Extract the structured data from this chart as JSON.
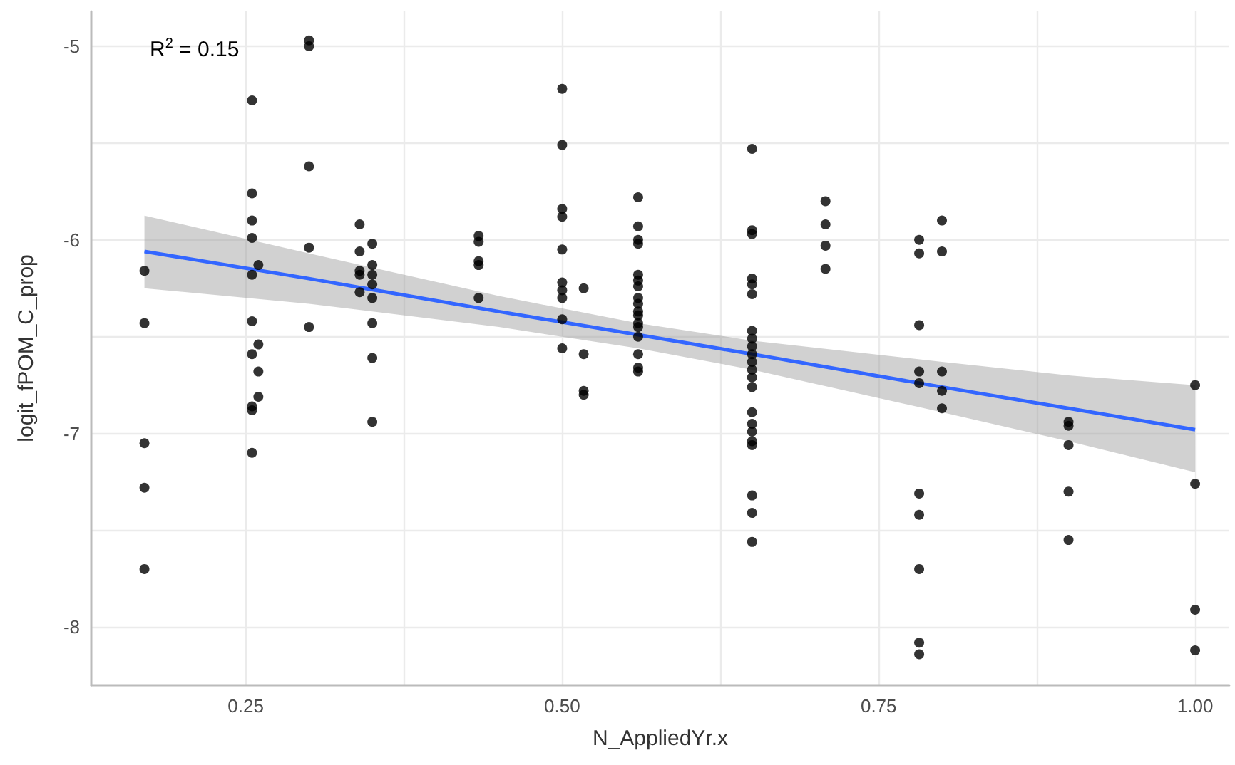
{
  "chart_data": {
    "type": "scatter",
    "xlabel": "N_AppliedYr.x",
    "ylabel": "logit_fPOM_C_prop",
    "annotations": [
      "R$^{2}$ = 0.15"
    ],
    "xlim": [
      0.128,
      1.027
    ],
    "ylim": [
      -8.3,
      -4.82
    ],
    "xticks": [
      0.25,
      {
        "value": 0.375,
        "label": null
      },
      "0.50",
      {
        "value": 0.625,
        "label": null
      },
      0.75,
      {
        "value": 0.875,
        "label": null
      },
      {
        "value": 1,
        "label": "1.00"
      }
    ],
    "yticks": [
      -8,
      {
        "value": -7.5,
        "label": null
      },
      -7,
      {
        "value": -6.5,
        "label": null
      },
      -6,
      {
        "value": -5.5,
        "label": null
      },
      -5
    ],
    "grid": true,
    "marker": "circle",
    "series": [
      {
        "color": "#000000",
        "x": [
          0.17,
          0.17,
          0.17,
          0.17,
          0.17,
          0.255,
          0.255,
          0.255,
          0.255,
          0.255,
          0.255,
          0.255,
          0.255,
          0.255,
          0.255,
          0.26,
          0.26,
          0.26,
          0.26,
          0.3,
          0.3,
          0.3,
          0.3,
          0.3,
          0.34,
          0.34,
          0.34,
          0.34,
          0.34,
          0.35,
          0.35,
          0.35,
          0.35,
          0.35,
          0.35,
          0.35,
          0.35,
          0.434,
          0.434,
          0.434,
          0.434,
          0.434,
          0.5,
          0.5,
          0.5,
          0.5,
          0.5,
          0.5,
          0.5,
          0.5,
          0.5,
          0.5,
          0.517,
          0.517,
          0.517,
          0.517,
          0.56,
          0.56,
          0.56,
          0.56,
          0.56,
          0.56,
          0.56,
          0.56,
          0.56,
          0.56,
          0.56,
          0.56,
          0.56,
          0.56,
          0.56,
          0.56,
          0.56,
          0.65,
          0.65,
          0.65,
          0.65,
          0.65,
          0.65,
          0.65,
          0.65,
          0.65,
          0.65,
          0.65,
          0.65,
          0.65,
          0.65,
          0.65,
          0.65,
          0.65,
          0.65,
          0.65,
          0.65,
          0.65,
          0.65,
          0.708,
          0.708,
          0.708,
          0.708,
          0.782,
          0.782,
          0.782,
          0.782,
          0.782,
          0.782,
          0.782,
          0.782,
          0.782,
          0.782,
          0.8,
          0.8,
          0.8,
          0.8,
          0.8,
          0.9,
          0.9,
          0.9,
          0.9,
          0.9,
          1.0,
          1.0,
          1.0,
          1.0
        ],
        "values": [
          -6.16,
          -6.43,
          -7.05,
          -7.28,
          -7.7,
          -5.28,
          -5.76,
          -5.9,
          -5.99,
          -6.18,
          -6.42,
          -6.59,
          -6.86,
          -6.88,
          -7.1,
          -6.13,
          -6.54,
          -6.68,
          -6.81,
          -4.97,
          -5.0,
          -5.62,
          -6.04,
          -6.45,
          -5.92,
          -6.06,
          -6.16,
          -6.18,
          -6.27,
          -6.02,
          -6.13,
          -6.18,
          -6.23,
          -6.3,
          -6.43,
          -6.61,
          -6.94,
          -5.98,
          -6.01,
          -6.11,
          -6.13,
          -6.3,
          -5.22,
          -5.51,
          -5.84,
          -5.88,
          -6.05,
          -6.22,
          -6.26,
          -6.3,
          -6.41,
          -6.56,
          -6.25,
          -6.59,
          -6.78,
          -6.8,
          -5.78,
          -5.93,
          -6.0,
          -6.02,
          -6.18,
          -6.21,
          -6.24,
          -6.3,
          -6.33,
          -6.37,
          -6.39,
          -6.43,
          -6.45,
          -6.5,
          -6.59,
          -6.66,
          -6.68,
          -5.53,
          -5.95,
          -5.97,
          -6.2,
          -6.23,
          -6.28,
          -6.47,
          -6.51,
          -6.55,
          -6.59,
          -6.63,
          -6.67,
          -6.71,
          -6.76,
          -6.89,
          -6.95,
          -6.99,
          -7.04,
          -7.06,
          -7.32,
          -7.41,
          -7.56,
          -5.8,
          -5.92,
          -6.03,
          -6.15,
          -6.0,
          -6.07,
          -6.44,
          -6.68,
          -6.74,
          -7.31,
          -7.42,
          -7.7,
          -8.08,
          -8.14,
          -5.9,
          -6.06,
          -6.68,
          -6.78,
          -6.87,
          -6.94,
          -6.96,
          -7.06,
          -7.3,
          -7.55,
          -6.75,
          -7.26,
          -7.91,
          -8.12
        ]
      },
      {
        "type": "line",
        "color": "#3366ff",
        "marker": "none",
        "x": [
          0.17,
          0.3,
          0.45,
          0.56,
          0.65,
          0.8,
          0.9,
          1.0
        ],
        "values": [
          -6.06,
          -6.2,
          -6.37,
          -6.49,
          -6.59,
          -6.76,
          -6.87,
          -6.98
        ],
        "lower": [
          -6.25,
          -6.33,
          -6.45,
          -6.56,
          -6.67,
          -6.89,
          -7.04,
          -7.2
        ],
        "upper": [
          -5.875,
          -6.07,
          -6.29,
          -6.43,
          -6.52,
          -6.63,
          -6.7,
          -6.75
        ]
      }
    ]
  }
}
